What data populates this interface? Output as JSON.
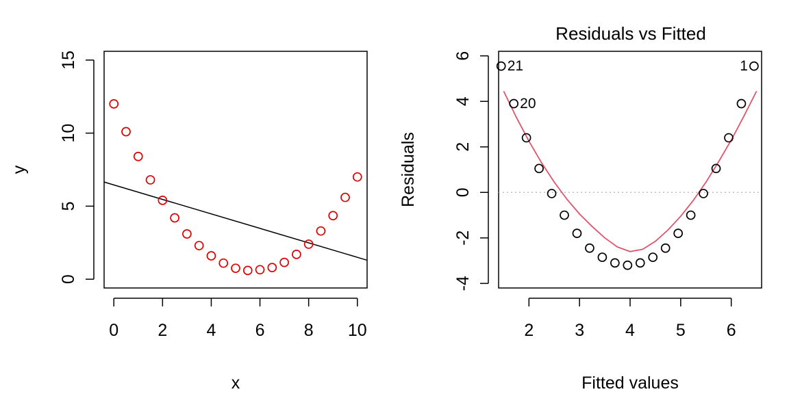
{
  "chart_data": [
    {
      "type": "scatter",
      "title": "",
      "xlabel": "x",
      "ylabel": "y",
      "xlim": [
        -0.4,
        10.4
      ],
      "ylim": [
        -0.6,
        15.6
      ],
      "xticks": [
        "0",
        "2",
        "4",
        "6",
        "8",
        "10"
      ],
      "yticks": [
        "0",
        "5",
        "10",
        "15"
      ],
      "point_color": "#DF0000",
      "line_color": "#000000",
      "points": {
        "x": [
          0,
          0.5,
          1,
          1.5,
          2,
          2.5,
          3,
          3.5,
          4,
          4.5,
          5,
          5.5,
          6,
          6.5,
          7,
          7.5,
          8,
          8.5,
          9,
          9.5,
          10
        ],
        "y": [
          12.0,
          10.1,
          8.4,
          6.8,
          5.4,
          4.2,
          3.1,
          2.3,
          1.6,
          1.1,
          0.75,
          0.6,
          0.65,
          0.8,
          1.15,
          1.7,
          2.4,
          3.3,
          4.35,
          5.6,
          7.0
        ]
      },
      "fit_line": {
        "x": [
          -0.4,
          10.4
        ],
        "y": [
          6.65,
          1.3
        ]
      }
    },
    {
      "type": "scatter",
      "title": "Residuals vs Fitted",
      "xlabel": "Fitted values",
      "ylabel": "Residuals",
      "xlim": [
        1.4,
        6.6
      ],
      "ylim": [
        -4.2,
        6.2
      ],
      "xticks": [
        "2",
        "3",
        "4",
        "5",
        "6"
      ],
      "yticks": [
        "-4",
        "-2",
        "0",
        "2",
        "4",
        "6"
      ],
      "point_color": "#000000",
      "smooth_color": "#DF536B",
      "zero_line_color": "#BEBEBE",
      "points": {
        "x": [
          6.45,
          6.2,
          5.95,
          5.7,
          5.45,
          5.2,
          4.95,
          4.7,
          4.45,
          4.2,
          3.95,
          3.7,
          3.45,
          3.2,
          2.95,
          2.7,
          2.45,
          2.2,
          1.95,
          1.7,
          1.45
        ],
        "y": [
          5.55,
          3.9,
          2.4,
          1.05,
          -0.05,
          -1.0,
          -1.8,
          -2.45,
          -2.85,
          -3.1,
          -3.2,
          -3.1,
          -2.85,
          -2.45,
          -1.8,
          -1.0,
          -0.05,
          1.05,
          2.4,
          3.9,
          5.55
        ]
      },
      "smooth": {
        "x": [
          1.5,
          1.75,
          2.0,
          2.25,
          2.5,
          2.75,
          3.0,
          3.25,
          3.5,
          3.75,
          4.0,
          4.25,
          4.5,
          4.75,
          5.0,
          5.25,
          5.5,
          5.75,
          6.0,
          6.25,
          6.5
        ],
        "y": [
          4.45,
          3.3,
          2.25,
          1.3,
          0.45,
          -0.3,
          -0.95,
          -1.5,
          -2.0,
          -2.4,
          -2.6,
          -2.5,
          -2.15,
          -1.65,
          -1.05,
          -0.35,
          0.45,
          1.35,
          2.3,
          3.35,
          4.45
        ]
      },
      "annotations": [
        {
          "text": "21",
          "x": 1.45,
          "y": 5.55,
          "pos": "right"
        },
        {
          "text": "20",
          "x": 1.7,
          "y": 3.9,
          "pos": "right"
        },
        {
          "text": "1",
          "x": 6.45,
          "y": 5.55,
          "pos": "left"
        }
      ]
    }
  ]
}
